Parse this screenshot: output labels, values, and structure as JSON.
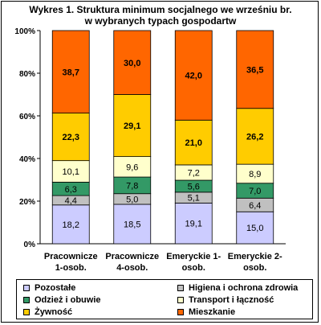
{
  "chart_data": {
    "type": "bar",
    "stacked": true,
    "title_lines": [
      "Wykres 1. Struktura minimum socjalnego we wrześniu br.",
      "w wybranych typach gospodartw"
    ],
    "categories": [
      [
        "Pracownicze",
        "1-osob."
      ],
      [
        "Pracownicze",
        "4-osob."
      ],
      [
        "Emeryckie 1-",
        "osob."
      ],
      [
        "Emeryckie 2-",
        "osob."
      ]
    ],
    "y_ticks": [
      "0%",
      "20%",
      "40%",
      "60%",
      "80%",
      "100%"
    ],
    "ylim": [
      0,
      100
    ],
    "series": [
      {
        "name": "Pozostałe",
        "color": "#ccccff",
        "values": [
          18.2,
          18.5,
          19.1,
          15.0
        ],
        "labels": [
          "18,2",
          "18,5",
          "19,1",
          "15,0"
        ]
      },
      {
        "name": "Higiena i ochrona zdrowia",
        "color": "#c0c0c0",
        "values": [
          4.4,
          5.0,
          5.1,
          6.4
        ],
        "labels": [
          "4,4",
          "5,0",
          "5,1",
          "6,4"
        ]
      },
      {
        "name": "Odzież i obuwie",
        "color": "#339966",
        "values": [
          6.3,
          7.8,
          5.6,
          7.0
        ],
        "labels": [
          "6,3",
          "7,8",
          "5,6",
          "7,0"
        ]
      },
      {
        "name": "Transport i łączność",
        "color": "#ffffcc",
        "values": [
          10.1,
          9.6,
          7.2,
          8.9
        ],
        "labels": [
          "10,1",
          "9,6",
          "7,2",
          "8,9"
        ]
      },
      {
        "name": "Żywność",
        "color": "#ffcc00",
        "values": [
          22.3,
          29.1,
          21.0,
          26.2
        ],
        "labels": [
          "22,3",
          "29,1",
          "21,0",
          "26,2"
        ]
      },
      {
        "name": "Mieszkanie",
        "color": "#ff6600",
        "values": [
          38.7,
          30.0,
          42.0,
          36.5
        ],
        "labels": [
          "38,7",
          "30,0",
          "42,0",
          "36,5"
        ]
      }
    ],
    "legend_order": [
      0,
      1,
      2,
      3,
      4,
      5
    ],
    "legend_position": "bottom",
    "grid": false
  }
}
